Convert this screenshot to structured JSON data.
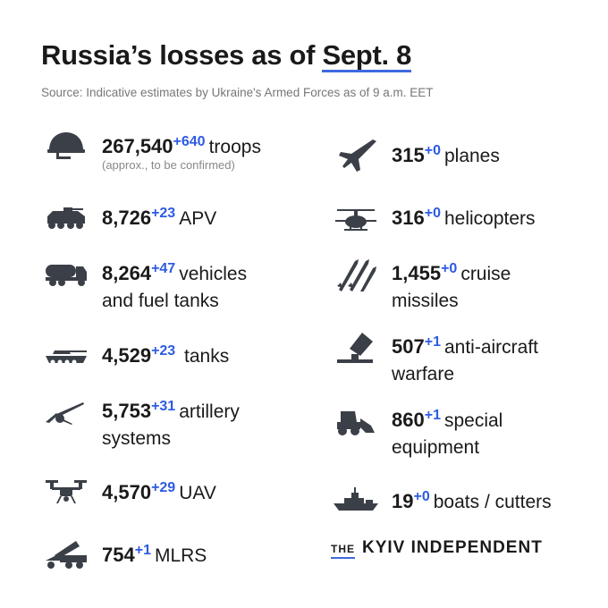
{
  "title_prefix": "Russia’s losses as of",
  "title_date": "Sept. 8",
  "subtitle": "Source: Indicative estimates by Ukraine's Armed Forces as of 9 a.m. EET",
  "accent_color": "#3e6ae1",
  "items": [
    {
      "icon": "helmet-icon",
      "value": "267,540",
      "delta": "+640",
      "label": "troops",
      "note": "(approx., to be confirmed)"
    },
    {
      "icon": "apv-icon",
      "value": "8,726",
      "delta": "+23",
      "label": "APV"
    },
    {
      "icon": "fuel-truck-icon",
      "value": "8,264",
      "delta": "+47",
      "label": "vehicles",
      "label2": "and fuel tanks"
    },
    {
      "icon": "tank-icon",
      "value": "4,529",
      "delta": "+23",
      "label": "tanks"
    },
    {
      "icon": "artillery-icon",
      "value": "5,753",
      "delta": "+31",
      "label": "artillery",
      "label2": "systems"
    },
    {
      "icon": "drone-icon",
      "value": "4,570",
      "delta": "+29",
      "label": "UAV"
    },
    {
      "icon": "mlrs-icon",
      "value": "754",
      "delta": "+1",
      "label": "MLRS"
    },
    {
      "icon": "plane-icon",
      "value": "315",
      "delta": "+0",
      "label": "planes"
    },
    {
      "icon": "helicopter-icon",
      "value": "316",
      "delta": "+0",
      "label": "helicopters"
    },
    {
      "icon": "missile-icon",
      "value": "1,455",
      "delta": "+0",
      "label": "cruise",
      "label2": "missiles"
    },
    {
      "icon": "anti-aircraft-icon",
      "value": "507",
      "delta": "+1",
      "label": "anti-aircraft",
      "label2": "warfare"
    },
    {
      "icon": "special-equipment-icon",
      "value": "860",
      "delta": "+1",
      "label": "special",
      "label2": "equipment"
    },
    {
      "icon": "boat-icon",
      "value": "19",
      "delta": "+0",
      "label": "boats / cutters"
    }
  ],
  "logo": {
    "the": "THE",
    "name": "KYIV INDEPENDENT"
  }
}
